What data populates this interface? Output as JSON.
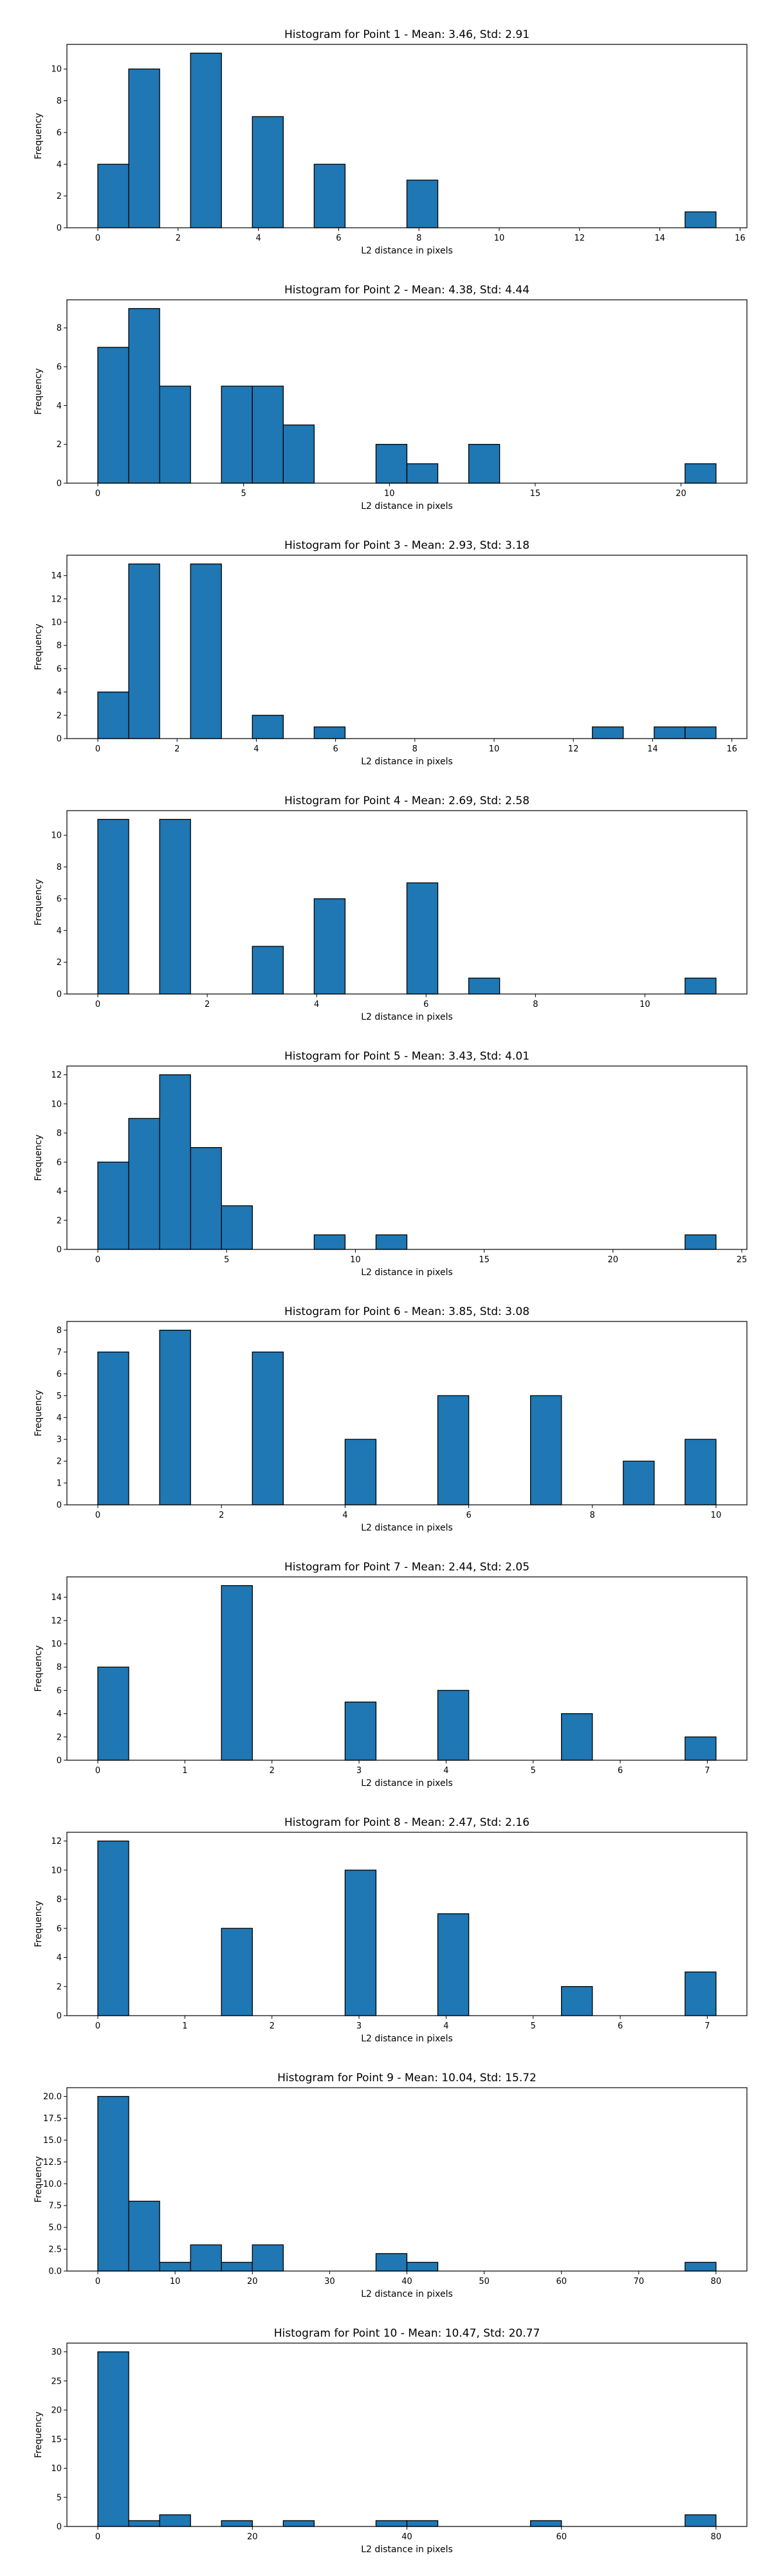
{
  "chart_data": [
    {
      "type": "bar",
      "title": "Histogram for Point 1 - Mean: 3.46, Std: 2.91",
      "xlabel": "L2 distance in pixels",
      "ylabel": "Frequency",
      "bin_start": 0,
      "bin_width": 0.77,
      "values": [
        4,
        10,
        0,
        11,
        0,
        7,
        0,
        4,
        0,
        0,
        3,
        0,
        0,
        0,
        0,
        0,
        0,
        0,
        0,
        1
      ],
      "xlim": [
        -0.77,
        16.17
      ],
      "xticks": [
        0,
        2,
        4,
        6,
        8,
        10,
        12,
        14,
        16
      ],
      "ylim": [
        0,
        11.55
      ],
      "yticks": [
        0,
        2,
        4,
        6,
        8,
        10
      ]
    },
    {
      "type": "bar",
      "title": "Histogram for Point 2 - Mean: 4.38, Std: 4.44",
      "xlabel": "L2 distance in pixels",
      "ylabel": "Frequency",
      "bin_start": 0,
      "bin_width": 1.06,
      "values": [
        7,
        9,
        5,
        0,
        5,
        5,
        3,
        0,
        0,
        2,
        1,
        0,
        2,
        0,
        0,
        0,
        0,
        0,
        0,
        1
      ],
      "xlim": [
        -1.06,
        22.26
      ],
      "xticks": [
        0,
        5,
        10,
        15,
        20
      ],
      "ylim": [
        0,
        9.45
      ],
      "yticks": [
        0,
        2,
        4,
        6,
        8
      ]
    },
    {
      "type": "bar",
      "title": "Histogram for Point 3 - Mean: 2.93, Std: 3.18",
      "xlabel": "L2 distance in pixels",
      "ylabel": "Frequency",
      "bin_start": 0,
      "bin_width": 0.78,
      "values": [
        4,
        15,
        0,
        15,
        0,
        2,
        0,
        1,
        0,
        0,
        0,
        0,
        0,
        0,
        0,
        0,
        1,
        0,
        1,
        1
      ],
      "xlim": [
        -0.78,
        16.38
      ],
      "xticks": [
        0,
        2,
        4,
        6,
        8,
        10,
        12,
        14,
        16
      ],
      "ylim": [
        0,
        15.75
      ],
      "yticks": [
        0,
        2,
        4,
        6,
        8,
        10,
        12,
        14
      ]
    },
    {
      "type": "bar",
      "title": "Histogram for Point 4 - Mean: 2.69, Std: 2.58",
      "xlabel": "L2 distance in pixels",
      "ylabel": "Frequency",
      "bin_start": 0,
      "bin_width": 0.565,
      "values": [
        11,
        0,
        11,
        0,
        0,
        3,
        0,
        6,
        0,
        0,
        7,
        0,
        1,
        0,
        0,
        0,
        0,
        0,
        0,
        1
      ],
      "xlim": [
        -0.565,
        11.865
      ],
      "xticks": [
        0,
        2,
        4,
        6,
        8,
        10
      ],
      "ylim": [
        0,
        11.55
      ],
      "yticks": [
        0,
        2,
        4,
        6,
        8,
        10
      ]
    },
    {
      "type": "bar",
      "title": "Histogram for Point 5 - Mean: 3.43, Std: 4.01",
      "xlabel": "L2 distance in pixels",
      "ylabel": "Frequency",
      "bin_start": 0,
      "bin_width": 1.2,
      "values": [
        6,
        9,
        12,
        7,
        3,
        0,
        0,
        1,
        0,
        1,
        0,
        0,
        0,
        0,
        0,
        0,
        0,
        0,
        0,
        1
      ],
      "xlim": [
        -1.2,
        25.2
      ],
      "xticks": [
        0,
        5,
        10,
        15,
        20,
        25
      ],
      "ylim": [
        0,
        12.6
      ],
      "yticks": [
        0,
        2,
        4,
        6,
        8,
        10,
        12
      ]
    },
    {
      "type": "bar",
      "title": "Histogram for Point 6 - Mean: 3.85, Std: 3.08",
      "xlabel": "L2 distance in pixels",
      "ylabel": "Frequency",
      "bin_start": 0,
      "bin_width": 0.5,
      "values": [
        7,
        0,
        8,
        0,
        0,
        7,
        0,
        0,
        3,
        0,
        0,
        5,
        0,
        0,
        5,
        0,
        0,
        2,
        0,
        3
      ],
      "xlim": [
        -0.5,
        10.5
      ],
      "xticks": [
        0,
        2,
        4,
        6,
        8,
        10
      ],
      "ylim": [
        0,
        8.4
      ],
      "yticks": [
        0,
        1,
        2,
        3,
        4,
        5,
        6,
        7,
        8
      ]
    },
    {
      "type": "bar",
      "title": "Histogram for Point 7 - Mean: 2.44, Std: 2.05",
      "xlabel": "L2 distance in pixels",
      "ylabel": "Frequency",
      "bin_start": 0,
      "bin_width": 0.355,
      "values": [
        8,
        0,
        0,
        0,
        15,
        0,
        0,
        0,
        5,
        0,
        0,
        6,
        0,
        0,
        0,
        4,
        0,
        0,
        0,
        2
      ],
      "xlim": [
        -0.355,
        7.455
      ],
      "xticks": [
        0,
        1,
        2,
        3,
        4,
        5,
        6,
        7
      ],
      "ylim": [
        0,
        15.75
      ],
      "yticks": [
        0,
        2,
        4,
        6,
        8,
        10,
        12,
        14
      ]
    },
    {
      "type": "bar",
      "title": "Histogram for Point 8 - Mean: 2.47, Std: 2.16",
      "xlabel": "L2 distance in pixels",
      "ylabel": "Frequency",
      "bin_start": 0,
      "bin_width": 0.355,
      "values": [
        12,
        0,
        0,
        0,
        6,
        0,
        0,
        0,
        10,
        0,
        0,
        7,
        0,
        0,
        0,
        2,
        0,
        0,
        0,
        3
      ],
      "xlim": [
        -0.355,
        7.455
      ],
      "xticks": [
        0,
        1,
        2,
        3,
        4,
        5,
        6,
        7
      ],
      "ylim": [
        0,
        12.6
      ],
      "yticks": [
        0,
        2,
        4,
        6,
        8,
        10,
        12
      ]
    },
    {
      "type": "bar",
      "title": "Histogram for Point 9 - Mean: 10.04, Std: 15.72",
      "xlabel": "L2 distance in pixels",
      "ylabel": "Frequency",
      "bin_start": 0,
      "bin_width": 4.0,
      "values": [
        20,
        8,
        1,
        3,
        1,
        3,
        0,
        0,
        0,
        2,
        1,
        0,
        0,
        0,
        0,
        0,
        0,
        0,
        0,
        1
      ],
      "xlim": [
        -4.0,
        84.0
      ],
      "xticks": [
        0,
        10,
        20,
        30,
        40,
        50,
        60,
        70,
        80
      ],
      "ylim": [
        0,
        21.0
      ],
      "yticks": [
        "0.0",
        "2.5",
        "5.0",
        "7.5",
        "10.0",
        "12.5",
        "15.0",
        "17.5",
        "20.0"
      ]
    },
    {
      "type": "bar",
      "title": "Histogram for Point 10 - Mean: 10.47, Std: 20.77",
      "xlabel": "L2 distance in pixels",
      "ylabel": "Frequency",
      "bin_start": 0,
      "bin_width": 4.0,
      "values": [
        30,
        1,
        2,
        0,
        1,
        0,
        1,
        0,
        0,
        1,
        1,
        0,
        0,
        0,
        1,
        0,
        0,
        0,
        0,
        2
      ],
      "xlim": [
        -4.0,
        84.0
      ],
      "xticks": [
        0,
        20,
        40,
        60,
        80
      ],
      "ylim": [
        0,
        31.5
      ],
      "yticks": [
        0,
        5,
        10,
        15,
        20,
        25,
        30
      ]
    }
  ],
  "colors": {
    "bar_fill": "#1f77b4",
    "bar_edge": "#000000",
    "axes": "#000000"
  }
}
